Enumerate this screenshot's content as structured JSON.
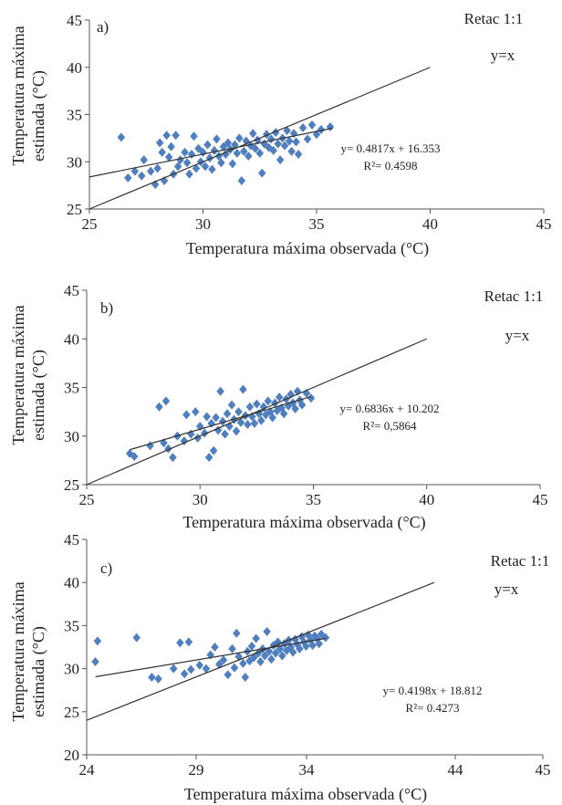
{
  "colors": {
    "point": "#4f7fbf",
    "line": "#333333",
    "axis": "#555555"
  },
  "chart_data": [
    {
      "type": "scatter",
      "panel": "a)",
      "xlabel": "Temperatura máxima observada (°C)",
      "ylabel": "Temperatura máxima estimada (°C)",
      "xlim": [
        25,
        45
      ],
      "ylim": [
        25,
        45
      ],
      "xticks": [
        "25",
        "30",
        "35",
        "40",
        "45"
      ],
      "yticks": [
        "25",
        "30",
        "35",
        "40",
        "45"
      ],
      "reference_label": "Retac 1:1",
      "reference_eq": "y=x",
      "reference_line": [
        [
          25,
          25
        ],
        [
          40,
          40
        ]
      ],
      "regression": {
        "equation": "y= 0.4817x + 16.353",
        "r2": "R²= 0.4598",
        "slope": 0.4817,
        "intercept": 16.353,
        "x_range": [
          25,
          35.7
        ]
      },
      "points": [
        [
          26.4,
          32.6
        ],
        [
          26.7,
          28.3
        ],
        [
          27.0,
          29.0
        ],
        [
          27.3,
          28.5
        ],
        [
          27.4,
          30.2
        ],
        [
          27.7,
          29.0
        ],
        [
          27.9,
          27.6
        ],
        [
          28.0,
          29.3
        ],
        [
          28.1,
          32.0
        ],
        [
          28.2,
          31.0
        ],
        [
          28.3,
          28.0
        ],
        [
          28.4,
          32.8
        ],
        [
          28.5,
          30.5
        ],
        [
          28.6,
          31.6
        ],
        [
          28.7,
          28.7
        ],
        [
          28.8,
          32.8
        ],
        [
          28.9,
          29.5
        ],
        [
          29.0,
          30.2
        ],
        [
          29.2,
          31.0
        ],
        [
          29.3,
          29.9
        ],
        [
          29.4,
          28.7
        ],
        [
          29.5,
          30.8
        ],
        [
          29.6,
          32.7
        ],
        [
          29.7,
          29.3
        ],
        [
          29.8,
          31.4
        ],
        [
          29.9,
          30.0
        ],
        [
          30.0,
          31.0
        ],
        [
          30.1,
          29.5
        ],
        [
          30.2,
          31.8
        ],
        [
          30.3,
          30.4
        ],
        [
          30.4,
          29.2
        ],
        [
          30.5,
          31.2
        ],
        [
          30.6,
          32.4
        ],
        [
          30.7,
          30.6
        ],
        [
          30.8,
          29.9
        ],
        [
          30.9,
          31.6
        ],
        [
          31.0,
          30.8
        ],
        [
          31.1,
          32.0
        ],
        [
          31.2,
          31.3
        ],
        [
          31.3,
          29.8
        ],
        [
          31.4,
          31.8
        ],
        [
          31.5,
          30.9
        ],
        [
          31.6,
          32.5
        ],
        [
          31.7,
          28.0
        ],
        [
          31.8,
          31.1
        ],
        [
          31.9,
          32.2
        ],
        [
          32.0,
          30.6
        ],
        [
          32.1,
          31.7
        ],
        [
          32.2,
          33.0
        ],
        [
          32.3,
          31.4
        ],
        [
          32.4,
          32.3
        ],
        [
          32.5,
          30.9
        ],
        [
          32.6,
          28.8
        ],
        [
          32.7,
          31.9
        ],
        [
          32.8,
          32.9
        ],
        [
          32.9,
          31.5
        ],
        [
          33.0,
          32.4
        ],
        [
          33.1,
          31.2
        ],
        [
          33.2,
          33.1
        ],
        [
          33.3,
          31.9
        ],
        [
          33.4,
          30.2
        ],
        [
          33.5,
          32.5
        ],
        [
          33.6,
          31.7
        ],
        [
          33.7,
          33.3
        ],
        [
          33.8,
          32.2
        ],
        [
          33.9,
          31.1
        ],
        [
          34.0,
          33.0
        ],
        [
          34.1,
          32.1
        ],
        [
          34.2,
          30.8
        ],
        [
          34.4,
          33.6
        ],
        [
          34.6,
          32.4
        ],
        [
          34.8,
          33.9
        ],
        [
          35.0,
          32.9
        ],
        [
          35.2,
          33.4
        ],
        [
          35.6,
          33.7
        ]
      ]
    },
    {
      "type": "scatter",
      "panel": "b)",
      "xlabel": "Temperatura máxima observada (°C)",
      "ylabel": "Temperatura máxima estimada (°C)",
      "xlim": [
        25,
        45
      ],
      "ylim": [
        25,
        45
      ],
      "xticks": [
        "25",
        "30",
        "35",
        "40",
        "45"
      ],
      "yticks": [
        "25",
        "30",
        "35",
        "40",
        "45"
      ],
      "reference_label": "Retac 1:1",
      "reference_eq": "y=x",
      "reference_line": [
        [
          25,
          25
        ],
        [
          40,
          40
        ]
      ],
      "regression": {
        "equation": "y= 0.6836x + 10.202",
        "r2": "R²= 0,5864",
        "slope": 0.6836,
        "intercept": 10.202,
        "x_range": [
          26.9,
          34.9
        ]
      },
      "points": [
        [
          26.9,
          28.2
        ],
        [
          27.1,
          27.9
        ],
        [
          27.8,
          29.0
        ],
        [
          28.2,
          33.0
        ],
        [
          28.4,
          29.3
        ],
        [
          28.5,
          33.6
        ],
        [
          28.6,
          28.7
        ],
        [
          28.8,
          27.8
        ],
        [
          29.0,
          30.0
        ],
        [
          29.3,
          29.5
        ],
        [
          29.4,
          32.2
        ],
        [
          29.6,
          30.2
        ],
        [
          29.8,
          32.5
        ],
        [
          29.9,
          29.8
        ],
        [
          30.0,
          31.0
        ],
        [
          30.2,
          30.3
        ],
        [
          30.3,
          32.0
        ],
        [
          30.4,
          27.8
        ],
        [
          30.5,
          31.3
        ],
        [
          30.6,
          28.5
        ],
        [
          30.7,
          31.9
        ],
        [
          30.8,
          30.6
        ],
        [
          30.9,
          34.6
        ],
        [
          31.0,
          31.5
        ],
        [
          31.1,
          30.2
        ],
        [
          31.2,
          32.3
        ],
        [
          31.3,
          31.0
        ],
        [
          31.4,
          33.2
        ],
        [
          31.5,
          31.7
        ],
        [
          31.6,
          30.5
        ],
        [
          31.7,
          32.5
        ],
        [
          31.8,
          31.4
        ],
        [
          31.9,
          34.8
        ],
        [
          32.0,
          32.1
        ],
        [
          32.1,
          31.2
        ],
        [
          32.2,
          33.0
        ],
        [
          32.3,
          32.0
        ],
        [
          32.4,
          31.3
        ],
        [
          32.5,
          33.3
        ],
        [
          32.6,
          32.3
        ],
        [
          32.7,
          31.6
        ],
        [
          32.8,
          33.0
        ],
        [
          32.9,
          32.2
        ],
        [
          33.0,
          33.6
        ],
        [
          33.1,
          32.5
        ],
        [
          33.2,
          31.9
        ],
        [
          33.3,
          33.4
        ],
        [
          33.4,
          32.6
        ],
        [
          33.5,
          34.0
        ],
        [
          33.6,
          32.9
        ],
        [
          33.7,
          32.3
        ],
        [
          33.8,
          33.8
        ],
        [
          33.9,
          33.1
        ],
        [
          34.0,
          34.3
        ],
        [
          34.1,
          33.4
        ],
        [
          34.2,
          32.8
        ],
        [
          34.3,
          34.6
        ],
        [
          34.4,
          33.7
        ],
        [
          34.5,
          33.2
        ],
        [
          34.7,
          34.4
        ],
        [
          34.9,
          33.9
        ]
      ]
    },
    {
      "type": "scatter",
      "panel": "c)",
      "xlabel": "Temperatura máxima observada (°C)",
      "ylabel": "Temperatura máxima estimada (°C)",
      "xlim": [
        24,
        45
      ],
      "ylim": [
        20,
        45
      ],
      "xticks": [
        "24",
        "29",
        "34",
        "44",
        "45"
      ],
      "ytick_values": [
        20,
        25,
        30,
        35,
        40,
        45
      ],
      "yticks": [
        "20",
        "25",
        "30",
        "35",
        "40",
        "45"
      ],
      "reference_label": "Retac 1:1",
      "reference_eq": "y=x",
      "reference_line": [
        [
          24,
          24
        ],
        [
          40,
          40
        ]
      ],
      "regression": {
        "equation": "y= 0.4198x + 18.812",
        "r2": "R²= 0.4273",
        "slope": 0.4198,
        "intercept": 18.812,
        "x_range": [
          24.4,
          35.0
        ]
      },
      "points": [
        [
          24.4,
          30.8
        ],
        [
          24.5,
          33.2
        ],
        [
          26.3,
          33.6
        ],
        [
          27.0,
          29.0
        ],
        [
          27.3,
          28.8
        ],
        [
          28.0,
          30.0
        ],
        [
          28.3,
          33.0
        ],
        [
          28.5,
          29.4
        ],
        [
          28.7,
          33.1
        ],
        [
          28.8,
          29.9
        ],
        [
          29.2,
          30.4
        ],
        [
          29.5,
          30.0
        ],
        [
          29.7,
          31.6
        ],
        [
          29.9,
          32.5
        ],
        [
          30.1,
          30.5
        ],
        [
          30.3,
          31.0
        ],
        [
          30.5,
          29.3
        ],
        [
          30.7,
          32.3
        ],
        [
          30.8,
          30.1
        ],
        [
          30.9,
          34.1
        ],
        [
          31.0,
          31.4
        ],
        [
          31.2,
          30.6
        ],
        [
          31.3,
          29.0
        ],
        [
          31.4,
          32.0
        ],
        [
          31.5,
          30.9
        ],
        [
          31.6,
          32.6
        ],
        [
          31.7,
          31.3
        ],
        [
          31.8,
          33.5
        ],
        [
          31.9,
          31.8
        ],
        [
          32.0,
          30.8
        ],
        [
          32.1,
          32.3
        ],
        [
          32.2,
          31.5
        ],
        [
          32.3,
          34.3
        ],
        [
          32.4,
          32.0
        ],
        [
          32.5,
          31.1
        ],
        [
          32.6,
          32.7
        ],
        [
          32.7,
          31.8
        ],
        [
          32.8,
          33.1
        ],
        [
          32.9,
          32.3
        ],
        [
          33.0,
          31.5
        ],
        [
          33.1,
          32.9
        ],
        [
          33.2,
          32.1
        ],
        [
          33.3,
          33.3
        ],
        [
          33.4,
          32.5
        ],
        [
          33.5,
          31.9
        ],
        [
          33.6,
          33.4
        ],
        [
          33.7,
          32.8
        ],
        [
          33.8,
          32.3
        ],
        [
          33.9,
          33.7
        ],
        [
          34.0,
          33.1
        ],
        [
          34.1,
          32.6
        ],
        [
          34.2,
          33.9
        ],
        [
          34.3,
          33.3
        ],
        [
          34.4,
          32.7
        ],
        [
          34.5,
          33.8
        ],
        [
          34.6,
          33.5
        ],
        [
          34.7,
          32.9
        ],
        [
          34.8,
          34.0
        ],
        [
          35.0,
          33.6
        ]
      ]
    }
  ]
}
